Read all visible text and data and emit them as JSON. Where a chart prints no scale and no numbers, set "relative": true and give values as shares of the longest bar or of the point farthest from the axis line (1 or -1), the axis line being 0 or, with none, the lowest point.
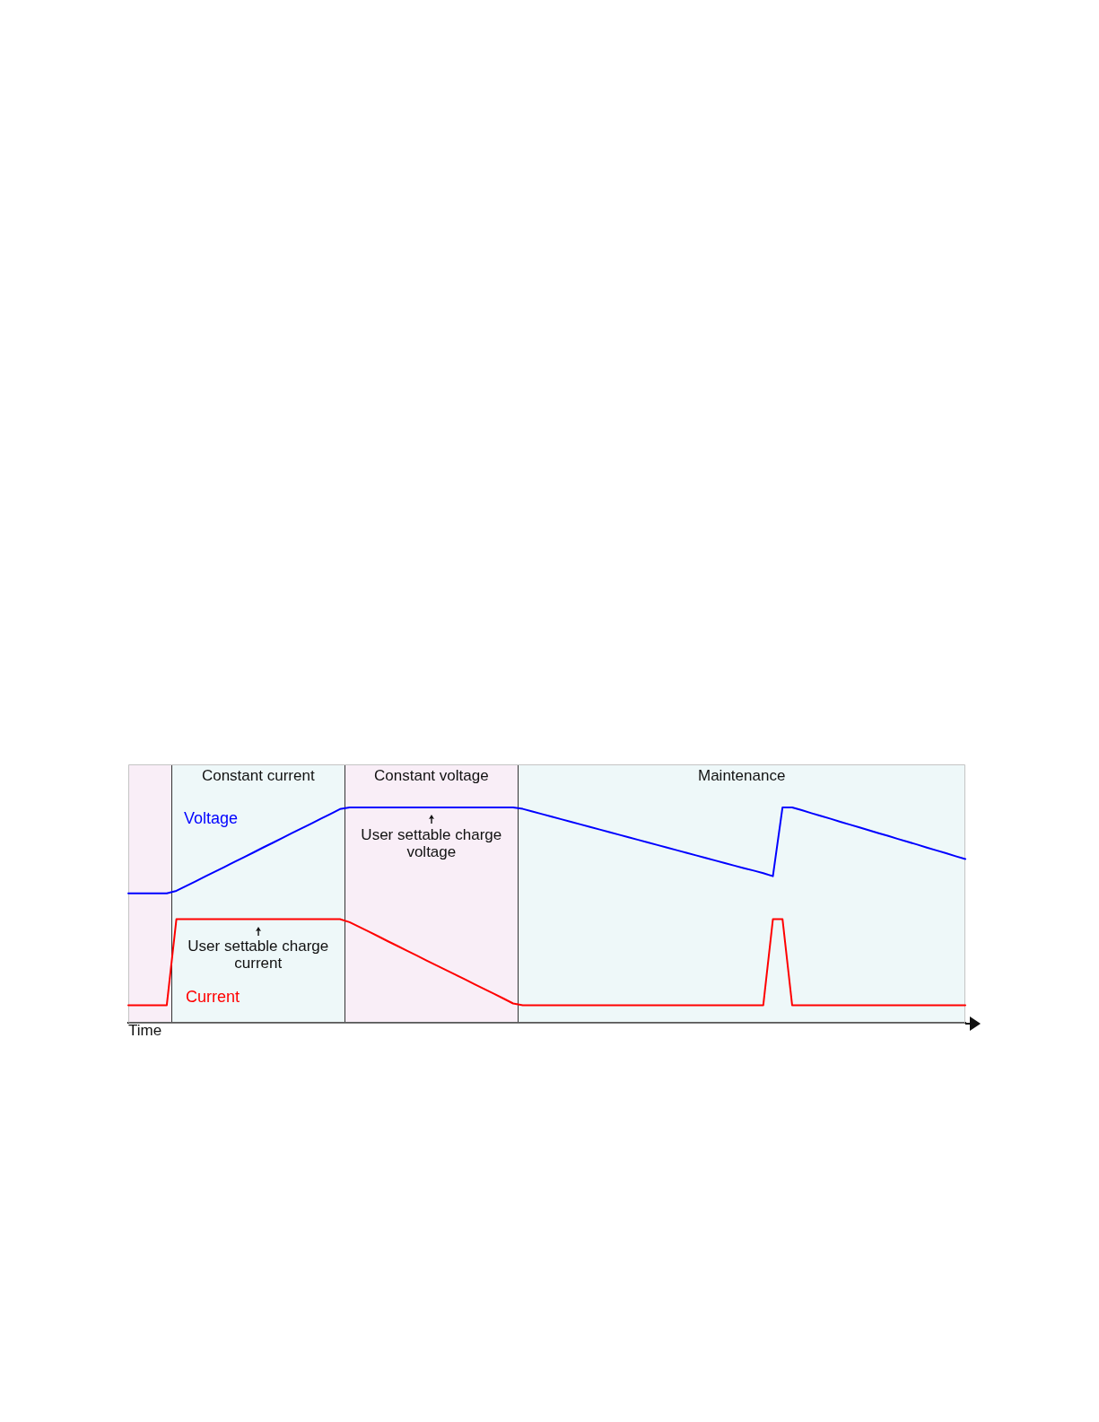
{
  "chart_data": {
    "type": "line",
    "xlabel": "Time",
    "relative": true,
    "legend": false,
    "grid": false,
    "marker": "none",
    "line_style": "solid",
    "categories": [
      null,
      null,
      null,
      null,
      null,
      null,
      null,
      null,
      null,
      null,
      null,
      null,
      null,
      null,
      null,
      null,
      null,
      null,
      null,
      null,
      null,
      null,
      null,
      null,
      null,
      null,
      null,
      null,
      null,
      null,
      null,
      null,
      null,
      null,
      null,
      null,
      null,
      null,
      null,
      null,
      null,
      null,
      null,
      null,
      null,
      null,
      null,
      null,
      null,
      null,
      null,
      null,
      null,
      null,
      null,
      null,
      null,
      null,
      null,
      null,
      null,
      null,
      null,
      null,
      null,
      null,
      null,
      null,
      null,
      null,
      null,
      null,
      null,
      null,
      null,
      null,
      null,
      null,
      null,
      null,
      null,
      null,
      null,
      null,
      null,
      null,
      null,
      null
    ],
    "series": [
      {
        "name": "Voltage",
        "color": "#0000ff",
        "values": [
          0.6,
          0.6,
          0.6,
          0.6,
          0.6,
          0.612,
          0.634,
          0.656,
          0.679,
          0.701,
          0.723,
          0.746,
          0.768,
          0.79,
          0.813,
          0.835,
          0.857,
          0.88,
          0.902,
          0.924,
          0.947,
          0.969,
          0.992,
          1,
          1,
          1,
          1,
          1,
          1,
          1,
          1,
          1,
          1,
          1,
          1,
          1,
          1,
          1,
          1,
          1,
          1,
          0.993,
          0.981,
          0.969,
          0.957,
          0.945,
          0.933,
          0.921,
          0.909,
          0.897,
          0.885,
          0.873,
          0.861,
          0.849,
          0.837,
          0.825,
          0.813,
          0.801,
          0.789,
          0.777,
          0.765,
          0.753,
          0.741,
          0.729,
          0.717,
          0.706,
          0.694,
          0.68,
          1,
          1,
          0.987,
          0.973,
          0.96,
          0.947,
          0.933,
          0.92,
          0.907,
          0.893,
          0.88,
          0.867,
          0.853,
          0.84,
          0.827,
          0.813,
          0.8,
          0.787,
          0.773,
          0.76
        ]
      },
      {
        "name": "Current",
        "color": "#ff0000",
        "values": [
          0.08,
          0.08,
          0.08,
          0.08,
          0.08,
          0.48,
          0.48,
          0.48,
          0.48,
          0.48,
          0.48,
          0.48,
          0.48,
          0.48,
          0.48,
          0.48,
          0.48,
          0.48,
          0.48,
          0.48,
          0.48,
          0.48,
          0.48,
          0.466,
          0.444,
          0.422,
          0.4,
          0.377,
          0.355,
          0.333,
          0.311,
          0.288,
          0.266,
          0.244,
          0.222,
          0.2,
          0.177,
          0.155,
          0.133,
          0.111,
          0.088,
          0.08,
          0.08,
          0.08,
          0.08,
          0.08,
          0.08,
          0.08,
          0.08,
          0.08,
          0.08,
          0.08,
          0.08,
          0.08,
          0.08,
          0.08,
          0.08,
          0.08,
          0.08,
          0.08,
          0.08,
          0.08,
          0.08,
          0.08,
          0.08,
          0.08,
          0.08,
          0.48,
          0.48,
          0.08,
          0.08,
          0.08,
          0.08,
          0.08,
          0.08,
          0.08,
          0.08,
          0.08,
          0.08,
          0.08,
          0.08,
          0.08,
          0.08,
          0.08,
          0.08,
          0.08,
          0.08,
          0.08
        ]
      }
    ],
    "annotations": [
      "Constant current",
      "Constant voltage",
      "Maintenance",
      {
        "text": "User settable charge voltage",
        "y": 1
      },
      {
        "text": "User settable charge current",
        "y": 0.48
      }
    ]
  }
}
